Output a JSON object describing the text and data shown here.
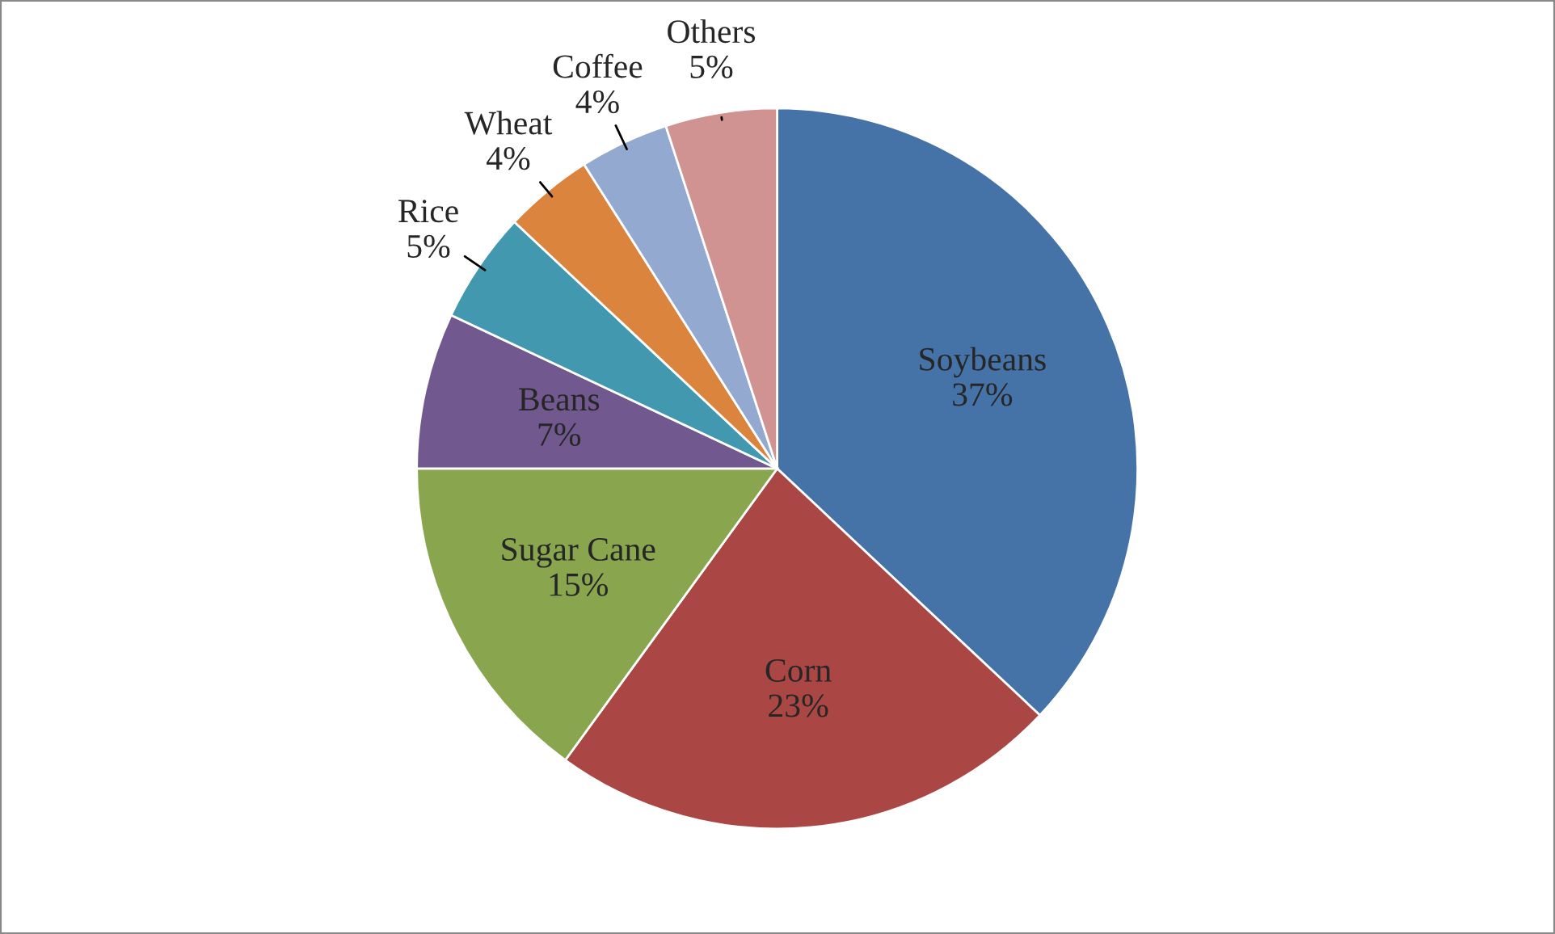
{
  "chart_data": {
    "type": "pie",
    "categories": [
      "Soybeans",
      "Corn",
      "Sugar Cane",
      "Beans",
      "Rice",
      "Wheat",
      "Coffee",
      "Others"
    ],
    "values": [
      37,
      23,
      15,
      7,
      5,
      4,
      4,
      5
    ],
    "value_labels": [
      "37%",
      "23%",
      "15%",
      "7%",
      "5%",
      "4%",
      "4%",
      "5%"
    ],
    "colors": [
      "#4572a7",
      "#aa4643",
      "#89a54e",
      "#71588f",
      "#4198af",
      "#db843d",
      "#93a9cf",
      "#d09392"
    ],
    "legend": false
  }
}
